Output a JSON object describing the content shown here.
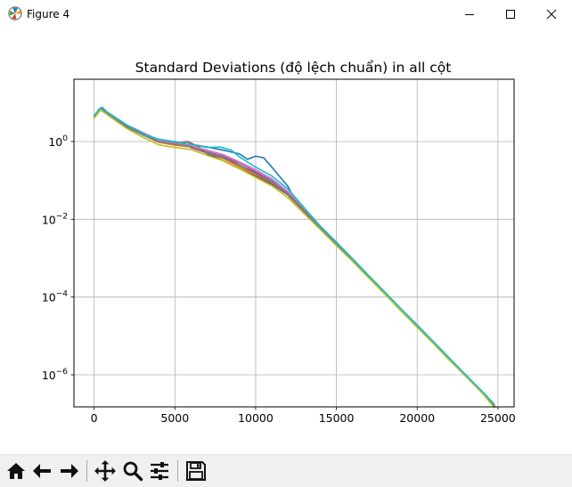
{
  "window": {
    "title": "Figure 4",
    "controls": [
      "minimize-icon",
      "maximize-icon",
      "close-icon"
    ]
  },
  "toolbar": {
    "buttons": [
      "home-icon",
      "back-arrow-icon",
      "forward-arrow-icon",
      "pan-icon",
      "zoom-icon",
      "configure-subplots-icon",
      "save-icon"
    ]
  },
  "chart_data": {
    "type": "line",
    "title": "Standard Deviations (độ lệch chuẩn) in all cột",
    "xlabel": "",
    "ylabel": "",
    "xlim": [
      -1250,
      26000
    ],
    "ylim": [
      1.5e-07,
      40
    ],
    "yscale": "log",
    "grid": true,
    "x_ticks": [
      0,
      5000,
      10000,
      15000,
      20000,
      25000
    ],
    "x_tick_labels": [
      "0",
      "5000",
      "10000",
      "15000",
      "20000",
      "25000"
    ],
    "y_ticks": [
      1e-06,
      0.0001,
      0.01,
      1
    ],
    "y_tick_labels": [
      {
        "base": "10",
        "exp": "−6"
      },
      {
        "base": "10",
        "exp": "−4"
      },
      {
        "base": "10",
        "exp": "−2"
      },
      {
        "base": "10",
        "exp": "0"
      }
    ],
    "series": [
      {
        "color": "#1f77b4",
        "x": [
          0,
          300,
          500,
          1000,
          2000,
          3000,
          4000,
          5000,
          6000,
          7000,
          8000,
          9000,
          9500,
          10000,
          10500,
          11000,
          12000,
          12500,
          13000,
          13500,
          14000,
          15000,
          16000,
          17000,
          18000,
          19000,
          20000,
          21000,
          22000,
          23000,
          24000,
          24800
        ],
        "y": [
          4.2,
          6.8,
          7.5,
          4.8,
          2.6,
          1.6,
          1.1,
          0.95,
          0.85,
          0.72,
          0.6,
          0.48,
          0.35,
          0.42,
          0.38,
          0.22,
          0.07,
          0.028,
          0.018,
          0.011,
          0.0055,
          0.0022,
          0.00085,
          0.00032,
          0.00012,
          4.5e-05,
          1.7e-05,
          6.5e-06,
          2.4e-06,
          9.5e-07,
          3.6e-07,
          1.6e-07
        ]
      },
      {
        "color": "#ff7f0e",
        "x": [
          0,
          400,
          1000,
          2000,
          3000,
          4000,
          5000,
          6000,
          7000,
          8000,
          9000,
          10000,
          11000,
          12000,
          13000,
          14000,
          15000,
          16000,
          17000,
          18000,
          19000,
          20000,
          21000,
          22000,
          23000,
          24000,
          24800
        ],
        "y": [
          4.0,
          6.9,
          4.5,
          2.4,
          1.5,
          0.95,
          0.8,
          0.72,
          0.5,
          0.36,
          0.22,
          0.14,
          0.085,
          0.042,
          0.016,
          0.0058,
          0.0023,
          0.0009,
          0.00033,
          0.000125,
          4.7e-05,
          1.8e-05,
          6.8e-06,
          2.5e-06,
          9.8e-07,
          3.7e-07,
          1.6e-07
        ]
      },
      {
        "color": "#2ca02c",
        "x": [
          0,
          400,
          1000,
          2000,
          3000,
          4000,
          5000,
          6000,
          7000,
          8000,
          9000,
          10000,
          11000,
          12000,
          13000,
          14000,
          15000,
          16000,
          17000,
          18000,
          19000,
          20000,
          21000,
          22000,
          23000,
          24000,
          24800
        ],
        "y": [
          4.5,
          7.1,
          4.9,
          2.5,
          1.6,
          1.0,
          0.85,
          0.75,
          0.52,
          0.4,
          0.25,
          0.15,
          0.09,
          0.045,
          0.017,
          0.006,
          0.0024,
          0.00092,
          0.00034,
          0.00013,
          4.8e-05,
          1.85e-05,
          7e-06,
          2.6e-06,
          1e-06,
          3.8e-07,
          1.7e-07
        ]
      },
      {
        "color": "#d62728",
        "x": [
          0,
          400,
          1000,
          2000,
          3000,
          4000,
          5000,
          5500,
          6000,
          7000,
          7500,
          8000,
          9000,
          10000,
          11000,
          12000,
          13000,
          14000,
          15000,
          16000,
          17000,
          18000,
          19000,
          20000,
          21000,
          22000,
          23000,
          24000,
          24800
        ],
        "y": [
          4.3,
          6.6,
          4.6,
          2.5,
          1.55,
          1.0,
          0.88,
          0.95,
          0.7,
          0.5,
          0.42,
          0.45,
          0.24,
          0.16,
          0.1,
          0.05,
          0.018,
          0.0062,
          0.0024,
          0.00091,
          0.00034,
          0.00013,
          4.8e-05,
          1.8e-05,
          6.8e-06,
          2.5e-06,
          9.7e-07,
          3.6e-07,
          1.5e-07
        ]
      },
      {
        "color": "#9467bd",
        "x": [
          0,
          400,
          1000,
          2000,
          3000,
          4000,
          5000,
          6000,
          7000,
          8000,
          9000,
          10000,
          11000,
          12000,
          13000,
          14000,
          15000,
          16000,
          17000,
          18000,
          19000,
          20000,
          21000,
          22000,
          23000,
          24000,
          24800
        ],
        "y": [
          4.6,
          7.3,
          5.0,
          2.7,
          1.7,
          1.1,
          0.92,
          0.8,
          0.55,
          0.42,
          0.28,
          0.17,
          0.1,
          0.05,
          0.019,
          0.0065,
          0.0025,
          0.00095,
          0.00035,
          0.00013,
          4.9e-05,
          1.85e-05,
          7e-06,
          2.6e-06,
          1e-06,
          3.8e-07,
          1.6e-07
        ]
      },
      {
        "color": "#8c564b",
        "x": [
          0,
          400,
          1000,
          2000,
          3000,
          4000,
          5000,
          5800,
          6500,
          7000,
          8000,
          9000,
          10000,
          11000,
          12000,
          13000,
          14000,
          15000,
          16000,
          17000,
          18000,
          19000,
          20000,
          21000,
          22000,
          23000,
          24000,
          24800
        ],
        "y": [
          4.1,
          6.7,
          4.4,
          2.4,
          1.5,
          0.98,
          0.9,
          1.0,
          0.72,
          0.48,
          0.32,
          0.2,
          0.13,
          0.08,
          0.042,
          0.016,
          0.0058,
          0.0022,
          0.00087,
          0.00033,
          0.000125,
          4.6e-05,
          1.75e-05,
          6.6e-06,
          2.5e-06,
          9.5e-07,
          3.6e-07,
          1.5e-07
        ]
      },
      {
        "color": "#e377c2",
        "x": [
          0,
          400,
          1000,
          2000,
          3000,
          4000,
          5000,
          6000,
          7000,
          8000,
          9000,
          10000,
          11000,
          12000,
          13000,
          14000,
          15000,
          16000,
          17000,
          18000,
          19000,
          20000,
          21000,
          22000,
          23000,
          24000,
          24800
        ],
        "y": [
          4.4,
          7.0,
          4.7,
          2.6,
          1.6,
          1.05,
          0.9,
          0.78,
          0.6,
          0.46,
          0.3,
          0.19,
          0.11,
          0.052,
          0.019,
          0.0064,
          0.0025,
          0.00093,
          0.00035,
          0.00013,
          4.9e-05,
          1.85e-05,
          7e-06,
          2.6e-06,
          9.9e-07,
          3.7e-07,
          1.6e-07
        ]
      },
      {
        "color": "#7f7f7f",
        "x": [
          0,
          400,
          1000,
          2000,
          3000,
          4000,
          5000,
          6000,
          7000,
          8000,
          9000,
          10000,
          11000,
          12000,
          13000,
          14000,
          15000,
          16000,
          17000,
          18000,
          19000,
          20000,
          21000,
          22000,
          23000,
          24000,
          24800
        ],
        "y": [
          4.3,
          6.8,
          4.6,
          2.5,
          1.55,
          1.0,
          0.86,
          0.73,
          0.5,
          0.38,
          0.24,
          0.15,
          0.088,
          0.044,
          0.017,
          0.006,
          0.0023,
          0.0009,
          0.00034,
          0.000128,
          4.8e-05,
          1.8e-05,
          6.8e-06,
          2.5e-06,
          9.7e-07,
          3.7e-07,
          1.6e-07
        ]
      },
      {
        "color": "#bcbd22",
        "x": [
          0,
          400,
          1000,
          2000,
          3000,
          4000,
          5000,
          6000,
          7000,
          8000,
          9000,
          10000,
          11000,
          12000,
          13000,
          14000,
          15000,
          16000,
          17000,
          18000,
          19000,
          20000,
          21000,
          22000,
          23000,
          24000,
          24800
        ],
        "y": [
          4.0,
          6.5,
          4.3,
          2.2,
          1.3,
          0.82,
          0.7,
          0.62,
          0.44,
          0.32,
          0.2,
          0.12,
          0.072,
          0.036,
          0.014,
          0.0055,
          0.0021,
          0.00083,
          0.00031,
          0.000118,
          4.4e-05,
          1.68e-05,
          6.4e-06,
          2.4e-06,
          9.2e-07,
          3.5e-07,
          1.4e-07
        ]
      },
      {
        "color": "#17becf",
        "x": [
          0,
          400,
          1000,
          2000,
          2800,
          3200,
          4000,
          5000,
          6000,
          7000,
          7800,
          8500,
          9000,
          10000,
          11000,
          12000,
          13000,
          14000,
          15000,
          16000,
          17000,
          18000,
          19000,
          20000,
          21000,
          22000,
          23000,
          24000,
          24800
        ],
        "y": [
          4.7,
          7.4,
          5.1,
          2.7,
          1.8,
          1.45,
          1.15,
          1.0,
          0.85,
          0.7,
          0.72,
          0.6,
          0.4,
          0.22,
          0.13,
          0.06,
          0.02,
          0.0067,
          0.0026,
          0.00097,
          0.00036,
          0.000135,
          5e-05,
          1.92e-05,
          7.2e-06,
          2.7e-06,
          1e-06,
          3.9e-07,
          1.7e-07
        ]
      }
    ]
  }
}
